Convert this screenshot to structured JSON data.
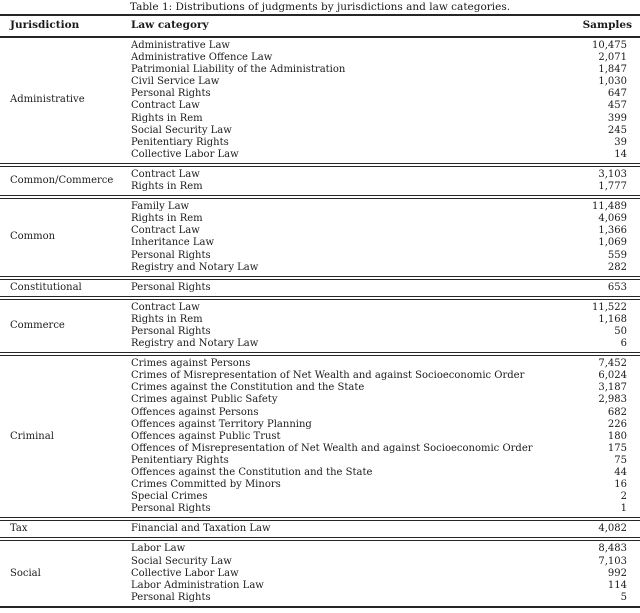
{
  "caption": "Table 1: Distributions of judgments by jurisdictions and law categories.",
  "columns": {
    "jurisdiction": "Jurisdiction",
    "law_category": "Law category",
    "samples": "Samples"
  },
  "text_color": "#1b1b1b",
  "rule_color": "#262626",
  "sections": [
    {
      "jurisdiction": "Administrative",
      "rows": [
        {
          "law_category": "Administrative Law",
          "samples": "10,475"
        },
        {
          "law_category": "Administrative Offence Law",
          "samples": "2,071"
        },
        {
          "law_category": "Patrimonial Liability of the Administration",
          "samples": "1,847"
        },
        {
          "law_category": "Civil Service Law",
          "samples": "1,030"
        },
        {
          "law_category": "Personal Rights",
          "samples": "647"
        },
        {
          "law_category": "Contract Law",
          "samples": "457"
        },
        {
          "law_category": "Rights in Rem",
          "samples": "399"
        },
        {
          "law_category": "Social Security Law",
          "samples": "245"
        },
        {
          "law_category": "Penitentiary Rights",
          "samples": "39"
        },
        {
          "law_category": "Collective Labor Law",
          "samples": "14"
        }
      ]
    },
    {
      "jurisdiction": "Common/Commerce",
      "rows": [
        {
          "law_category": "Contract Law",
          "samples": "3,103"
        },
        {
          "law_category": "Rights in Rem",
          "samples": "1,777"
        }
      ]
    },
    {
      "jurisdiction": "Common",
      "rows": [
        {
          "law_category": "Family Law",
          "samples": "11,489"
        },
        {
          "law_category": "Rights in Rem",
          "samples": "4,069"
        },
        {
          "law_category": "Contract Law",
          "samples": "1,366"
        },
        {
          "law_category": "Inheritance Law",
          "samples": "1,069"
        },
        {
          "law_category": "Personal Rights",
          "samples": "559"
        },
        {
          "law_category": "Registry and Notary Law",
          "samples": "282"
        }
      ]
    },
    {
      "jurisdiction": "Constitutional",
      "rows": [
        {
          "law_category": "Personal Rights",
          "samples": "653"
        }
      ]
    },
    {
      "jurisdiction": "Commerce",
      "rows": [
        {
          "law_category": "Contract Law",
          "samples": "11,522"
        },
        {
          "law_category": "Rights in Rem",
          "samples": "1,168"
        },
        {
          "law_category": "Personal Rights",
          "samples": "50"
        },
        {
          "law_category": "Registry and Notary Law",
          "samples": "6"
        }
      ]
    },
    {
      "jurisdiction": "Criminal",
      "rows": [
        {
          "law_category": "Crimes against Persons",
          "samples": "7,452"
        },
        {
          "law_category": "Crimes of Misrepresentation of Net Wealth and against Socioeconomic Order",
          "samples": "6,024"
        },
        {
          "law_category": "Crimes against the Constitution and the State",
          "samples": "3,187"
        },
        {
          "law_category": "Crimes against Public Safety",
          "samples": "2,983"
        },
        {
          "law_category": "Offences against Persons",
          "samples": "682"
        },
        {
          "law_category": "Offences against Territory Planning",
          "samples": "226"
        },
        {
          "law_category": "Offences against Public Trust",
          "samples": "180"
        },
        {
          "law_category": "Offences of Misrepresentation of Net Wealth and against Socioeconomic Order",
          "samples": "175"
        },
        {
          "law_category": "Penitentiary Rights",
          "samples": "75"
        },
        {
          "law_category": "Offences against the Constitution and the State",
          "samples": "44"
        },
        {
          "law_category": "Crimes Committed by Minors",
          "samples": "16"
        },
        {
          "law_category": "Special Crimes",
          "samples": "2"
        },
        {
          "law_category": "Personal Rights",
          "samples": "1"
        }
      ]
    },
    {
      "jurisdiction": "Tax",
      "rows": [
        {
          "law_category": "Financial and Taxation Law",
          "samples": "4,082"
        }
      ]
    },
    {
      "jurisdiction": "Social",
      "rows": [
        {
          "law_category": "Labor Law",
          "samples": "8,483"
        },
        {
          "law_category": "Social Security Law",
          "samples": "7,103"
        },
        {
          "law_category": "Collective Labor Law",
          "samples": "992"
        },
        {
          "law_category": "Labor Administration Law",
          "samples": "114"
        },
        {
          "law_category": "Personal Rights",
          "samples": "5"
        }
      ]
    }
  ]
}
